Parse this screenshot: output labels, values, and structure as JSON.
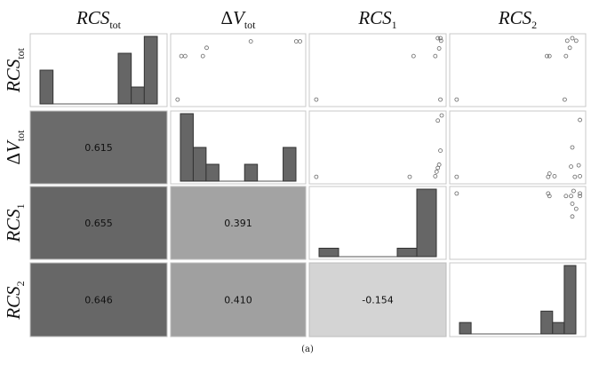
{
  "chart_data": {
    "type": "scatter-matrix",
    "variables": [
      {
        "key": "RCS_tot",
        "base": "RCS",
        "sub": "tot",
        "delta": false
      },
      {
        "key": "dV_tot",
        "base": "V",
        "sub": "tot",
        "delta": true
      },
      {
        "key": "RCS_1",
        "base": "RCS",
        "sub": "1",
        "delta": false
      },
      {
        "key": "RCS_2",
        "base": "RCS",
        "sub": "2",
        "delta": false
      }
    ],
    "correlations": [
      {
        "row": 1,
        "col": 0,
        "value": 0.615,
        "label": "0.615",
        "shade": "#6b6b6b"
      },
      {
        "row": 2,
        "col": 0,
        "value": 0.655,
        "label": "0.655",
        "shade": "#666666"
      },
      {
        "row": 3,
        "col": 0,
        "value": 0.646,
        "label": "0.646",
        "shade": "#676767"
      },
      {
        "row": 2,
        "col": 1,
        "value": 0.391,
        "label": "0.391",
        "shade": "#a3a3a3"
      },
      {
        "row": 3,
        "col": 1,
        "value": 0.41,
        "label": "0.410",
        "shade": "#a0a0a0"
      },
      {
        "row": 3,
        "col": 2,
        "value": -0.154,
        "label": "-0.154",
        "shade": "#d4d4d4"
      }
    ],
    "histograms": [
      {
        "var": 0,
        "bins": 9,
        "counts": [
          2,
          0,
          0,
          0,
          0,
          0,
          3,
          1,
          4
        ]
      },
      {
        "var": 1,
        "bins": 9,
        "counts": [
          4,
          2,
          1,
          0,
          0,
          1,
          0,
          0,
          2
        ]
      },
      {
        "var": 2,
        "bins": 6,
        "counts": [
          1,
          0,
          0,
          0,
          1,
          8
        ]
      },
      {
        "var": 3,
        "bins": 10,
        "counts": [
          1,
          0,
          0,
          0,
          0,
          0,
          0,
          2,
          1,
          6
        ]
      }
    ],
    "scatter": [
      {
        "row": 0,
        "col": 1,
        "points": [
          [
            0.02,
            0.04
          ],
          [
            0.05,
            0.72
          ],
          [
            0.08,
            0.72
          ],
          [
            0.22,
            0.72
          ],
          [
            0.25,
            0.85
          ],
          [
            0.6,
            0.95
          ],
          [
            0.96,
            0.95
          ],
          [
            0.99,
            0.95
          ]
        ]
      },
      {
        "row": 0,
        "col": 2,
        "points": [
          [
            0.02,
            0.04
          ],
          [
            0.78,
            0.72
          ],
          [
            0.95,
            0.72
          ],
          [
            0.97,
            1.0
          ],
          [
            0.98,
            0.84
          ],
          [
            0.99,
            1.0
          ],
          [
            0.995,
            0.96
          ],
          [
            0.99,
            0.04
          ]
        ]
      },
      {
        "row": 0,
        "col": 3,
        "points": [
          [
            0.02,
            0.04
          ],
          [
            0.73,
            0.72
          ],
          [
            0.75,
            0.72
          ],
          [
            0.88,
            0.72
          ],
          [
            0.89,
            0.96
          ],
          [
            0.91,
            0.85
          ],
          [
            0.93,
            1.0
          ],
          [
            0.96,
            0.96
          ],
          [
            0.87,
            0.04
          ]
        ]
      },
      {
        "row": 1,
        "col": 2,
        "points": [
          [
            0.02,
            0.04
          ],
          [
            0.75,
            0.04
          ],
          [
            0.95,
            0.05
          ],
          [
            0.96,
            0.12
          ],
          [
            0.97,
            0.18
          ],
          [
            0.98,
            0.23
          ],
          [
            0.99,
            0.45
          ],
          [
            0.97,
            0.92
          ],
          [
            1.0,
            1.0
          ]
        ]
      },
      {
        "row": 1,
        "col": 3,
        "points": [
          [
            0.02,
            0.04
          ],
          [
            0.74,
            0.04
          ],
          [
            0.75,
            0.09
          ],
          [
            0.79,
            0.05
          ],
          [
            0.92,
            0.2
          ],
          [
            0.95,
            0.04
          ],
          [
            0.98,
            0.22
          ],
          [
            0.99,
            0.05
          ],
          [
            0.93,
            0.5
          ],
          [
            0.99,
            0.93
          ]
        ]
      },
      {
        "row": 2,
        "col": 3,
        "points": [
          [
            0.02,
            0.96
          ],
          [
            0.74,
            0.96
          ],
          [
            0.75,
            0.92
          ],
          [
            0.88,
            0.92
          ],
          [
            0.92,
            0.92
          ],
          [
            0.94,
            1.0
          ],
          [
            0.99,
            0.96
          ],
          [
            0.99,
            0.92
          ],
          [
            0.93,
            0.6
          ],
          [
            0.93,
            0.8
          ],
          [
            0.96,
            0.72
          ]
        ]
      }
    ],
    "caption": "(a)"
  }
}
